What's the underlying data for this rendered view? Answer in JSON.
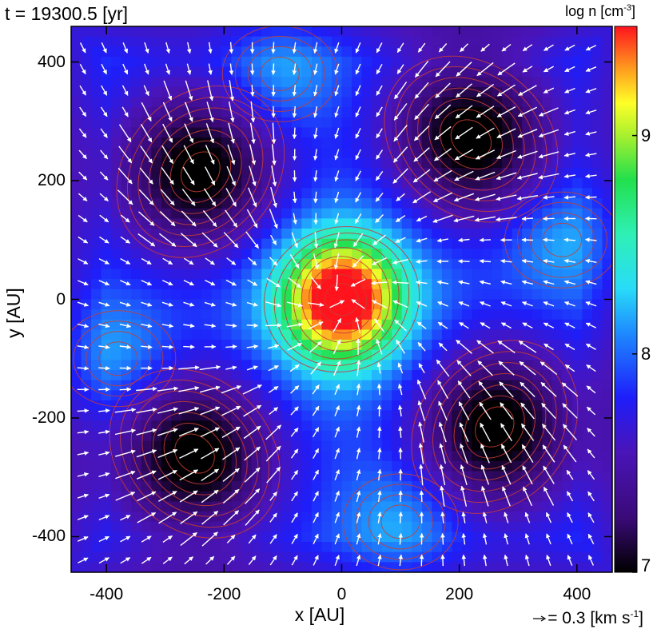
{
  "chart_data": {
    "type": "heatmap",
    "title": "t = 19300.5 [yr]",
    "xlabel": "x [AU]",
    "ylabel": "y [AU]",
    "colorbar": {
      "label_main": "log n [cm",
      "label_exp": "-3",
      "label_end": "]",
      "range": [
        7.0,
        9.5
      ],
      "ticks": [
        {
          "value": 7,
          "label": "7"
        },
        {
          "value": 8,
          "label": "8"
        },
        {
          "value": 9,
          "label": "9"
        }
      ],
      "colormap": "rainbow (black-purple-blue-cyan-green-yellow-red)"
    },
    "xlim": [
      -460,
      460
    ],
    "ylim": [
      -460,
      460
    ],
    "xticks": [
      {
        "value": -400,
        "label": "-400"
      },
      {
        "value": -200,
        "label": "-200"
      },
      {
        "value": 0,
        "label": "0"
      },
      {
        "value": 200,
        "label": "200"
      },
      {
        "value": 400,
        "label": "400"
      }
    ],
    "yticks": [
      {
        "value": -400,
        "label": "-400"
      },
      {
        "value": -200,
        "label": "-200"
      },
      {
        "value": 0,
        "label": "0"
      },
      {
        "value": 200,
        "label": "200"
      },
      {
        "value": 400,
        "label": "400"
      }
    ],
    "overlays": {
      "contours": {
        "color": "#c83c32"
      },
      "velocity_vectors": {
        "color": "#ffffff"
      }
    },
    "vector_key": {
      "main": "= 0.3 [km s",
      "exp": "-1",
      "end": "]",
      "value": 0.3
    },
    "features": {
      "low_density_lobes": [
        {
          "x": -240,
          "y": 215
        },
        {
          "x": 220,
          "y": 270
        },
        {
          "x": 260,
          "y": -215
        },
        {
          "x": -250,
          "y": -260
        }
      ],
      "density_peaks": [
        {
          "x": -105,
          "y": 380
        },
        {
          "x": 375,
          "y": 100
        },
        {
          "x": 100,
          "y": -375
        },
        {
          "x": -380,
          "y": -100
        }
      ],
      "central_core": {
        "x": 0,
        "y": 0,
        "log_n": 9.5
      }
    }
  }
}
